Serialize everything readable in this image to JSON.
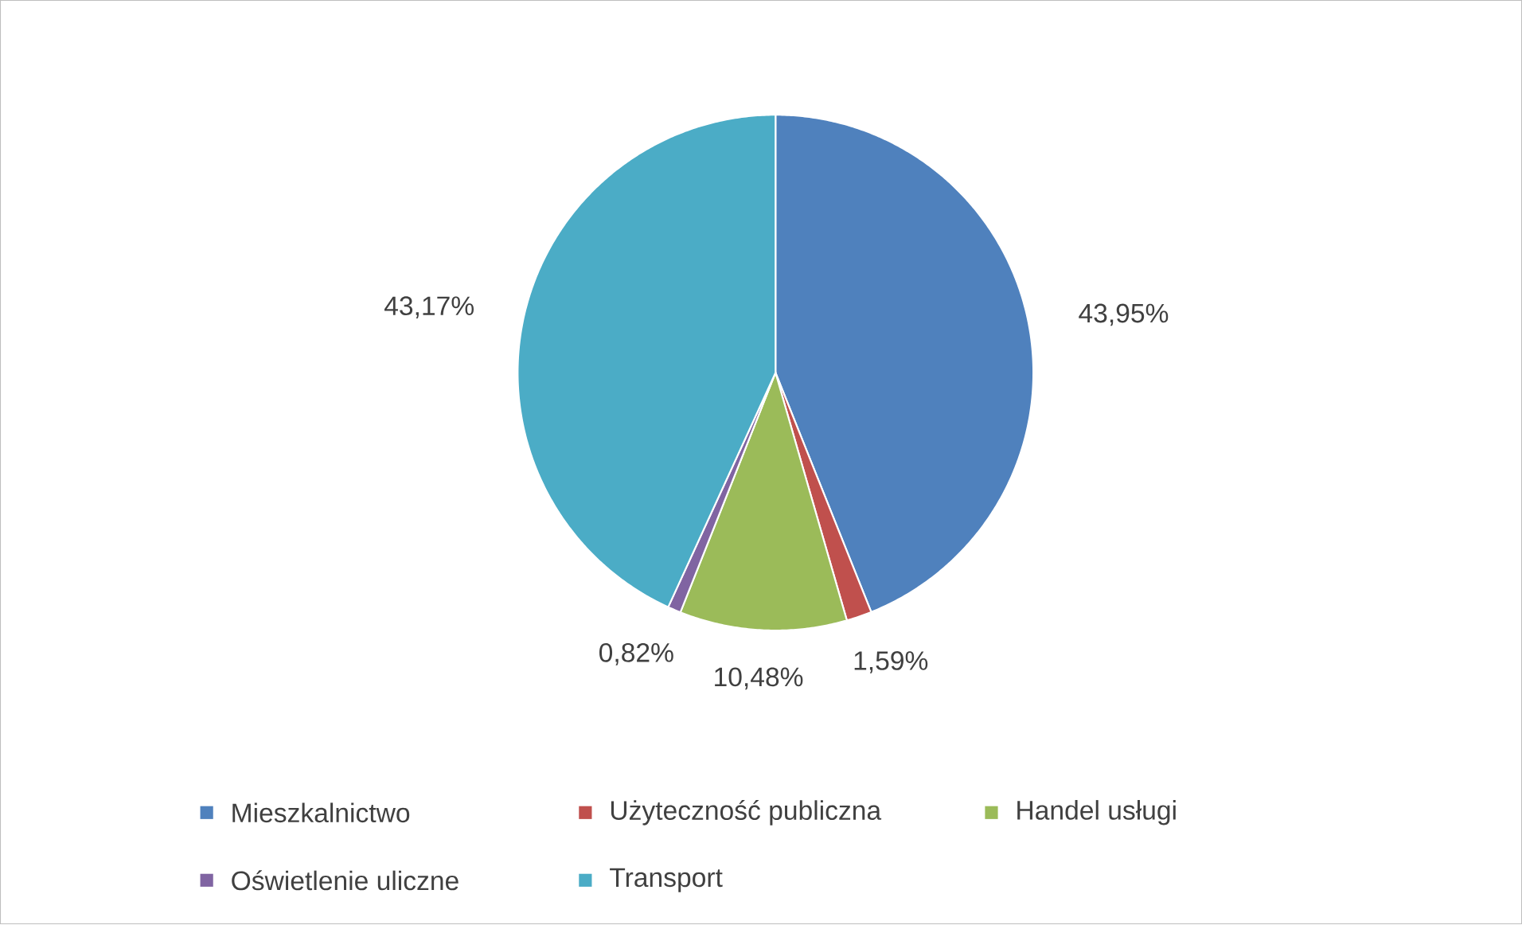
{
  "chart_data": {
    "type": "pie",
    "categories": [
      "Mieszkalnictwo",
      "Użyteczność publiczna",
      "Handel usługi",
      "Oświetlenie uliczne",
      "Transport"
    ],
    "values": [
      43.95,
      1.59,
      10.48,
      0.82,
      43.17
    ],
    "colors": [
      "#4f81bd",
      "#c0504d",
      "#9bbb59",
      "#8064a2",
      "#4bacc6"
    ],
    "value_labels": [
      "43,95%",
      "1,59%",
      "10,48%",
      "0,82%",
      "43,17%"
    ],
    "legend": "bottom"
  }
}
